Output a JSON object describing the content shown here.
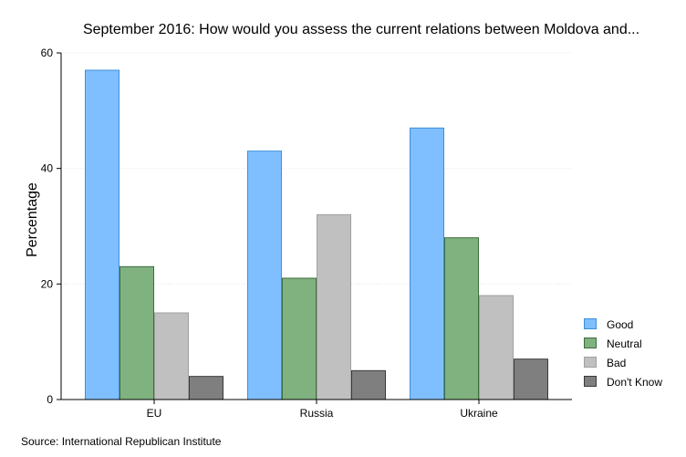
{
  "chart_data": {
    "type": "bar",
    "title": "September 2016: How would you assess the current relations between Moldova and...",
    "xlabel": "",
    "ylabel": "Percentage",
    "categories": [
      "EU",
      "Russia",
      "Ukraine"
    ],
    "series": [
      {
        "name": "Good",
        "values": [
          57,
          43,
          47
        ]
      },
      {
        "name": "Neutral",
        "values": [
          23,
          21,
          28
        ]
      },
      {
        "name": "Bad",
        "values": [
          15,
          32,
          18
        ]
      },
      {
        "name": "Don't Know",
        "values": [
          4,
          5,
          7
        ]
      }
    ],
    "ylim": [
      0,
      60
    ],
    "yticks": [
      0,
      20,
      40,
      60
    ],
    "grid": true,
    "legend_position": "right",
    "colors": {
      "Good": "#7fbfff",
      "Neutral": "#7fb27f",
      "Bad": "#c0c0c0",
      "Don't Know": "#7f7f7f"
    },
    "stroke_colors": {
      "Good": "#3d8fd9",
      "Neutral": "#3e6b3e",
      "Bad": "#a0a0a0",
      "Don't Know": "#3a3a3a"
    }
  },
  "note": "Source: International Republican Institute"
}
